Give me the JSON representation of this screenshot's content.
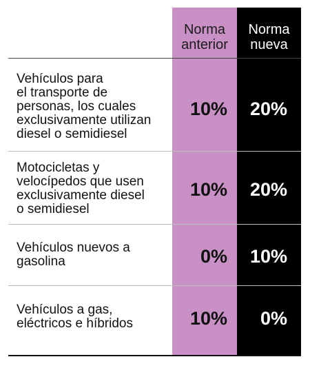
{
  "header": {
    "old_line1": "Norma",
    "old_line2": "anterior",
    "new_line1": "Norma",
    "new_line2": "nueva"
  },
  "rows": [
    {
      "label_lines": [
        "Vehículos para",
        "el transporte de",
        "personas, los cuales",
        "exclusivamente utilizan",
        "diesel o semidiesel"
      ],
      "old": "10%",
      "new": "20%"
    },
    {
      "label_lines": [
        "Motocicletas y",
        "velocípedos que usen",
        "exclusivamente diesel",
        "o semidiesel"
      ],
      "old": "10%",
      "new": "20%"
    },
    {
      "label_lines": [
        "Vehículos nuevos a",
        "gasolina"
      ],
      "old": "0%",
      "new": "10%"
    },
    {
      "label_lines": [
        "Vehículos a gas,",
        "eléctricos e híbridos"
      ],
      "old": "10%",
      "new": "0%"
    }
  ],
  "colors": {
    "old_column": "#c890c4",
    "new_column": "#000000"
  }
}
